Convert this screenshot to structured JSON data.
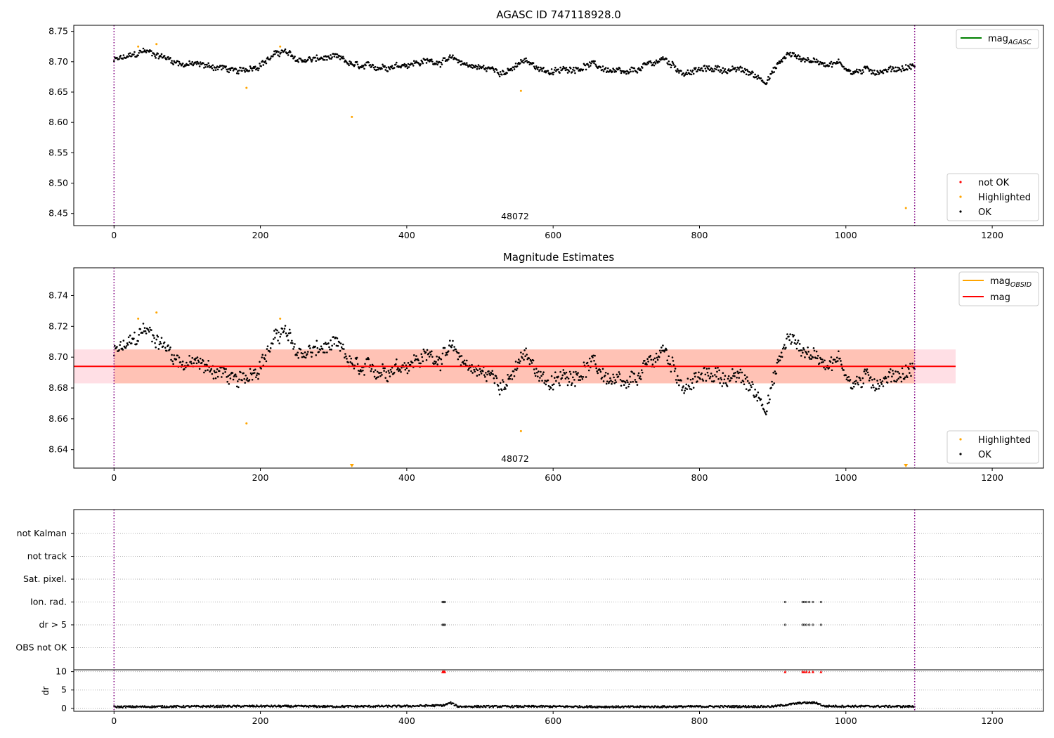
{
  "chart_data": [
    {
      "type": "scatter",
      "title": "AGASC ID 747118928.0",
      "xlim": [
        -55,
        1270
      ],
      "ylim": [
        8.43,
        8.76
      ],
      "xticks": [
        "0",
        "200",
        "400",
        "600",
        "800",
        "1000",
        "1200"
      ],
      "yticks": [
        "8.45",
        "8.50",
        "8.55",
        "8.60",
        "8.65",
        "8.70",
        "8.75"
      ],
      "grid": false,
      "vlines": [
        0,
        1094
      ],
      "annotation": "48072",
      "legend_top": {
        "placement": "top-right",
        "entries": [
          {
            "label_main": "mag",
            "label_sub": "AGASC",
            "color": "#008000"
          }
        ]
      },
      "legend_bottom": {
        "placement": "bottom-right",
        "entries": [
          {
            "label": "not OK",
            "color": "#ff0000"
          },
          {
            "label": "Highlighted",
            "color": "#ffa500"
          },
          {
            "label": "OK",
            "color": "#000000"
          }
        ]
      },
      "series": [
        {
          "name": "OK",
          "color": "#000000",
          "trend": [
            [
              0,
              8.702
            ],
            [
              30,
              8.71
            ],
            [
              40,
              8.718
            ],
            [
              60,
              8.712
            ],
            [
              90,
              8.698
            ],
            [
              150,
              8.69
            ],
            [
              170,
              8.681
            ],
            [
              200,
              8.698
            ],
            [
              230,
              8.718
            ],
            [
              250,
              8.702
            ],
            [
              300,
              8.706
            ],
            [
              340,
              8.688
            ],
            [
              380,
              8.695
            ],
            [
              420,
              8.7
            ],
            [
              460,
              8.703
            ],
            [
              500,
              8.69
            ],
            [
              540,
              8.684
            ],
            [
              560,
              8.7
            ],
            [
              600,
              8.682
            ],
            [
              650,
              8.696
            ],
            [
              700,
              8.677
            ],
            [
              750,
              8.705
            ],
            [
              780,
              8.682
            ],
            [
              820,
              8.689
            ],
            [
              860,
              8.685
            ],
            [
              890,
              8.67
            ],
            [
              920,
              8.712
            ],
            [
              960,
              8.7
            ],
            [
              990,
              8.698
            ],
            [
              1010,
              8.684
            ],
            [
              1050,
              8.686
            ],
            [
              1094,
              8.693
            ]
          ],
          "noise": 0.008
        },
        {
          "name": "Highlighted",
          "color": "#ffa500",
          "points": [
            [
              33,
              8.725
            ],
            [
              58,
              8.729
            ],
            [
              181,
              8.657
            ],
            [
              227,
              8.725
            ],
            [
              325,
              8.609
            ],
            [
              556,
              8.652
            ],
            [
              1082,
              8.459
            ]
          ]
        }
      ]
    },
    {
      "type": "scatter",
      "title": "Magnitude Estimates",
      "xlim": [
        -55,
        1270
      ],
      "ylim": [
        8.628,
        8.758
      ],
      "xticks": [
        "0",
        "200",
        "400",
        "600",
        "800",
        "1000",
        "1200"
      ],
      "yticks": [
        "8.64",
        "8.66",
        "8.68",
        "8.70",
        "8.72",
        "8.74"
      ],
      "grid": false,
      "vlines": [
        0,
        1094
      ],
      "annotation": "48072",
      "mag_line": 8.694,
      "band_pink": {
        "y": [
          8.683,
          8.705
        ],
        "x": [
          -55,
          1150
        ]
      },
      "band_orange": {
        "y": [
          8.683,
          8.705
        ],
        "x": [
          0,
          1094
        ]
      },
      "legend_top": {
        "placement": "top-right",
        "entries": [
          {
            "label_main": "mag",
            "label_sub": "OBSID",
            "color": "#ffa500"
          },
          {
            "label": "mag",
            "color": "#ff0000"
          }
        ]
      },
      "legend_bottom": {
        "placement": "bottom-right",
        "entries": [
          {
            "label": "Highlighted",
            "color": "#ffa500"
          },
          {
            "label": "OK",
            "color": "#000000"
          }
        ]
      },
      "series": [
        {
          "name": "OK",
          "color": "#000000",
          "same_as_panel": 0
        },
        {
          "name": "Highlighted",
          "color": "#ffa500",
          "points": [
            [
              33,
              8.725
            ],
            [
              58,
              8.729
            ],
            [
              181,
              8.657
            ],
            [
              227,
              8.725
            ],
            [
              556,
              8.652
            ]
          ]
        },
        {
          "name": "Highlighted (below range)",
          "color": "#ffa500",
          "markers": "triangle-down",
          "points": [
            [
              325,
              8.63
            ],
            [
              1082,
              8.63
            ]
          ]
        }
      ]
    },
    {
      "type": "scatter",
      "title": "",
      "xlim": [
        -55,
        1270
      ],
      "xticks": [
        "0",
        "200",
        "400",
        "600",
        "800",
        "1000",
        "1200"
      ],
      "vlines": [
        0,
        1094
      ],
      "flag_rows": [
        "not Kalman",
        "not track",
        "Sat. pixel.",
        "Ion. rad.",
        "dr > 5",
        "OBS not OK"
      ],
      "flag_points": [
        {
          "row": "Ion. rad.",
          "x": [
            449,
            450,
            451,
            452,
            917,
            941,
            943,
            946,
            950,
            955,
            966
          ]
        },
        {
          "row": "dr > 5",
          "x": [
            449,
            450,
            451,
            452,
            917,
            941,
            943,
            946,
            950,
            955,
            966
          ]
        }
      ],
      "dr_panel": {
        "ylabel": "dr",
        "yticks": [
          "0",
          "5",
          "10"
        ],
        "ylim": [
          -0.8,
          10.5
        ],
        "trend": [
          [
            0,
            0.4
          ],
          [
            100,
            0.5
          ],
          [
            200,
            0.6
          ],
          [
            300,
            0.5
          ],
          [
            400,
            0.6
          ],
          [
            450,
            0.8
          ],
          [
            460,
            1.5
          ],
          [
            470,
            0.5
          ],
          [
            600,
            0.5
          ],
          [
            700,
            0.4
          ],
          [
            800,
            0.5
          ],
          [
            900,
            0.5
          ],
          [
            940,
            1.5
          ],
          [
            960,
            1.5
          ],
          [
            970,
            0.6
          ],
          [
            1094,
            0.5
          ]
        ],
        "clipped_red": [
          449,
          450,
          451,
          452,
          917,
          941,
          943,
          946,
          950,
          955,
          966
        ]
      }
    }
  ]
}
